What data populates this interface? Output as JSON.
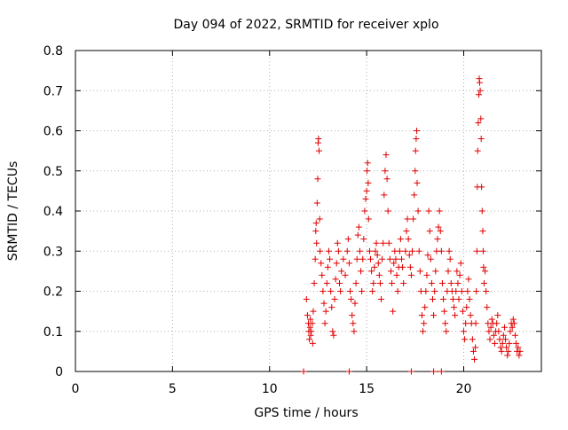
{
  "chart_data": {
    "type": "scatter",
    "title": "Day 094 of 2022, SRMTID for receiver xplo",
    "xlabel": "GPS time / hours",
    "ylabel": "SRMTID / TECUs",
    "xlim": [
      0,
      24
    ],
    "ylim": [
      0,
      0.8
    ],
    "xticks": [
      0,
      5,
      10,
      15,
      20
    ],
    "yticks": [
      0,
      0.1,
      0.2,
      0.3,
      0.4,
      0.5,
      0.6,
      0.7,
      0.8
    ],
    "xtick_labels": [
      "0",
      "5",
      "10",
      "15",
      "20"
    ],
    "ytick_labels": [
      "0",
      "0.1",
      "0.2",
      "0.3",
      "0.4",
      "0.5",
      "0.6",
      "0.7",
      "0.8"
    ],
    "grid": true,
    "marker": "+",
    "color": "#e00000",
    "series": [
      {
        "name": "SRMTID",
        "points": [
          [
            11.9,
            0.18
          ],
          [
            11.95,
            0.14
          ],
          [
            12.0,
            0.12
          ],
          [
            12.02,
            0.1
          ],
          [
            12.05,
            0.08
          ],
          [
            12.08,
            0.11
          ],
          [
            12.1,
            0.13
          ],
          [
            12.12,
            0.09
          ],
          [
            12.15,
            0.1
          ],
          [
            12.2,
            0.12
          ],
          [
            12.22,
            0.07
          ],
          [
            12.25,
            0.15
          ],
          [
            12.3,
            0.22
          ],
          [
            12.35,
            0.28
          ],
          [
            12.38,
            0.35
          ],
          [
            12.4,
            0.37
          ],
          [
            12.42,
            0.32
          ],
          [
            12.45,
            0.42
          ],
          [
            12.48,
            0.48
          ],
          [
            12.5,
            0.57
          ],
          [
            12.52,
            0.58
          ],
          [
            12.55,
            0.55
          ],
          [
            12.58,
            0.38
          ],
          [
            12.6,
            0.3
          ],
          [
            12.65,
            0.27
          ],
          [
            12.7,
            0.24
          ],
          [
            12.75,
            0.2
          ],
          [
            12.8,
            0.17
          ],
          [
            12.85,
            0.12
          ],
          [
            12.9,
            0.15
          ],
          [
            12.95,
            0.22
          ],
          [
            13.0,
            0.26
          ],
          [
            13.05,
            0.3
          ],
          [
            13.1,
            0.28
          ],
          [
            13.15,
            0.2
          ],
          [
            13.2,
            0.16
          ],
          [
            13.25,
            0.1
          ],
          [
            13.3,
            0.09
          ],
          [
            13.35,
            0.18
          ],
          [
            13.4,
            0.23
          ],
          [
            13.45,
            0.27
          ],
          [
            13.5,
            0.32
          ],
          [
            13.55,
            0.3
          ],
          [
            13.6,
            0.22
          ],
          [
            13.65,
            0.2
          ],
          [
            13.7,
            0.25
          ],
          [
            13.8,
            0.28
          ],
          [
            13.9,
            0.24
          ],
          [
            14.0,
            0.3
          ],
          [
            14.05,
            0.33
          ],
          [
            14.1,
            0.27
          ],
          [
            14.15,
            0.2
          ],
          [
            14.2,
            0.18
          ],
          [
            14.25,
            0.14
          ],
          [
            14.3,
            0.12
          ],
          [
            14.35,
            0.1
          ],
          [
            14.4,
            0.17
          ],
          [
            14.45,
            0.22
          ],
          [
            14.5,
            0.28
          ],
          [
            14.55,
            0.34
          ],
          [
            14.6,
            0.36
          ],
          [
            14.65,
            0.3
          ],
          [
            14.7,
            0.25
          ],
          [
            14.75,
            0.2
          ],
          [
            14.8,
            0.28
          ],
          [
            14.85,
            0.33
          ],
          [
            14.9,
            0.4
          ],
          [
            14.95,
            0.43
          ],
          [
            15.0,
            0.45
          ],
          [
            15.02,
            0.5
          ],
          [
            15.05,
            0.52
          ],
          [
            15.08,
            0.47
          ],
          [
            15.1,
            0.38
          ],
          [
            15.15,
            0.3
          ],
          [
            15.2,
            0.28
          ],
          [
            15.25,
            0.25
          ],
          [
            15.3,
            0.2
          ],
          [
            15.35,
            0.22
          ],
          [
            15.4,
            0.26
          ],
          [
            15.45,
            0.3
          ],
          [
            15.5,
            0.32
          ],
          [
            15.55,
            0.29
          ],
          [
            15.6,
            0.27
          ],
          [
            15.65,
            0.24
          ],
          [
            15.7,
            0.22
          ],
          [
            15.75,
            0.18
          ],
          [
            15.8,
            0.28
          ],
          [
            15.85,
            0.32
          ],
          [
            15.9,
            0.44
          ],
          [
            15.95,
            0.5
          ],
          [
            16.0,
            0.54
          ],
          [
            16.05,
            0.48
          ],
          [
            16.1,
            0.4
          ],
          [
            16.15,
            0.32
          ],
          [
            16.2,
            0.28
          ],
          [
            16.25,
            0.25
          ],
          [
            16.3,
            0.22
          ],
          [
            16.35,
            0.15
          ],
          [
            16.4,
            0.27
          ],
          [
            16.45,
            0.3
          ],
          [
            16.5,
            0.28
          ],
          [
            16.55,
            0.24
          ],
          [
            16.6,
            0.2
          ],
          [
            16.65,
            0.26
          ],
          [
            16.7,
            0.3
          ],
          [
            16.75,
            0.33
          ],
          [
            16.8,
            0.28
          ],
          [
            16.85,
            0.26
          ],
          [
            16.9,
            0.22
          ],
          [
            17.0,
            0.3
          ],
          [
            17.05,
            0.35
          ],
          [
            17.1,
            0.38
          ],
          [
            17.15,
            0.33
          ],
          [
            17.2,
            0.29
          ],
          [
            17.25,
            0.26
          ],
          [
            17.3,
            0.24
          ],
          [
            17.35,
            0.3
          ],
          [
            17.4,
            0.38
          ],
          [
            17.45,
            0.44
          ],
          [
            17.5,
            0.5
          ],
          [
            17.52,
            0.55
          ],
          [
            17.55,
            0.58
          ],
          [
            17.58,
            0.6
          ],
          [
            17.6,
            0.47
          ],
          [
            17.65,
            0.4
          ],
          [
            17.7,
            0.3
          ],
          [
            17.75,
            0.25
          ],
          [
            17.8,
            0.2
          ],
          [
            17.85,
            0.14
          ],
          [
            17.9,
            0.1
          ],
          [
            17.95,
            0.12
          ],
          [
            18.0,
            0.16
          ],
          [
            18.05,
            0.2
          ],
          [
            18.1,
            0.24
          ],
          [
            18.15,
            0.29
          ],
          [
            18.2,
            0.4
          ],
          [
            18.25,
            0.35
          ],
          [
            18.3,
            0.28
          ],
          [
            18.35,
            0.22
          ],
          [
            18.4,
            0.18
          ],
          [
            18.45,
            0.14
          ],
          [
            18.5,
            0.2
          ],
          [
            18.55,
            0.25
          ],
          [
            18.6,
            0.3
          ],
          [
            18.65,
            0.33
          ],
          [
            18.7,
            0.36
          ],
          [
            18.75,
            0.4
          ],
          [
            18.8,
            0.35
          ],
          [
            18.85,
            0.3
          ],
          [
            18.9,
            0.22
          ],
          [
            18.95,
            0.18
          ],
          [
            19.0,
            0.15
          ],
          [
            19.05,
            0.12
          ],
          [
            19.1,
            0.1
          ],
          [
            19.15,
            0.2
          ],
          [
            19.2,
            0.25
          ],
          [
            19.25,
            0.3
          ],
          [
            19.3,
            0.28
          ],
          [
            19.35,
            0.22
          ],
          [
            19.4,
            0.2
          ],
          [
            19.45,
            0.18
          ],
          [
            19.5,
            0.16
          ],
          [
            19.55,
            0.14
          ],
          [
            19.6,
            0.2
          ],
          [
            19.65,
            0.25
          ],
          [
            19.7,
            0.22
          ],
          [
            19.75,
            0.18
          ],
          [
            19.8,
            0.24
          ],
          [
            19.85,
            0.27
          ],
          [
            19.9,
            0.2
          ],
          [
            19.95,
            0.15
          ],
          [
            20.0,
            0.1
          ],
          [
            20.05,
            0.08
          ],
          [
            20.1,
            0.12
          ],
          [
            20.15,
            0.16
          ],
          [
            20.2,
            0.2
          ],
          [
            20.25,
            0.23
          ],
          [
            20.3,
            0.18
          ],
          [
            20.35,
            0.14
          ],
          [
            20.4,
            0.12
          ],
          [
            20.45,
            0.08
          ],
          [
            20.5,
            0.05
          ],
          [
            20.55,
            0.03
          ],
          [
            20.6,
            0.06
          ],
          [
            20.62,
            0.12
          ],
          [
            20.65,
            0.2
          ],
          [
            20.68,
            0.3
          ],
          [
            20.7,
            0.46
          ],
          [
            20.72,
            0.55
          ],
          [
            20.75,
            0.62
          ],
          [
            20.78,
            0.69
          ],
          [
            20.8,
            0.73
          ],
          [
            20.82,
            0.72
          ],
          [
            20.85,
            0.7
          ],
          [
            20.88,
            0.63
          ],
          [
            20.9,
            0.58
          ],
          [
            20.92,
            0.46
          ],
          [
            20.95,
            0.4
          ],
          [
            20.98,
            0.35
          ],
          [
            21.0,
            0.3
          ],
          [
            21.02,
            0.26
          ],
          [
            21.05,
            0.22
          ],
          [
            21.1,
            0.25
          ],
          [
            21.15,
            0.2
          ],
          [
            21.2,
            0.16
          ],
          [
            21.25,
            0.12
          ],
          [
            21.3,
            0.1
          ],
          [
            21.35,
            0.08
          ],
          [
            21.4,
            0.11
          ],
          [
            21.45,
            0.13
          ],
          [
            21.5,
            0.12
          ],
          [
            21.55,
            0.09
          ],
          [
            21.6,
            0.07
          ],
          [
            21.65,
            0.1
          ],
          [
            21.7,
            0.12
          ],
          [
            21.75,
            0.14
          ],
          [
            21.8,
            0.1
          ],
          [
            21.85,
            0.08
          ],
          [
            21.9,
            0.06
          ],
          [
            21.95,
            0.05
          ],
          [
            22.0,
            0.07
          ],
          [
            22.05,
            0.09
          ],
          [
            22.1,
            0.11
          ],
          [
            22.15,
            0.08
          ],
          [
            22.2,
            0.06
          ],
          [
            22.25,
            0.04
          ],
          [
            22.3,
            0.05
          ],
          [
            22.35,
            0.07
          ],
          [
            22.4,
            0.1
          ],
          [
            22.45,
            0.12
          ],
          [
            22.5,
            0.11
          ],
          [
            22.55,
            0.13
          ],
          [
            22.6,
            0.12
          ],
          [
            22.65,
            0.09
          ],
          [
            22.7,
            0.07
          ],
          [
            22.75,
            0.05
          ],
          [
            22.8,
            0.06
          ],
          [
            22.85,
            0.04
          ],
          [
            22.9,
            0.05
          ]
        ]
      },
      {
        "name": "zero-markers",
        "points": [
          [
            11.75,
            0
          ],
          [
            14.1,
            0
          ],
          [
            17.3,
            0
          ],
          [
            18.45,
            0
          ],
          [
            18.85,
            0
          ]
        ]
      }
    ]
  }
}
